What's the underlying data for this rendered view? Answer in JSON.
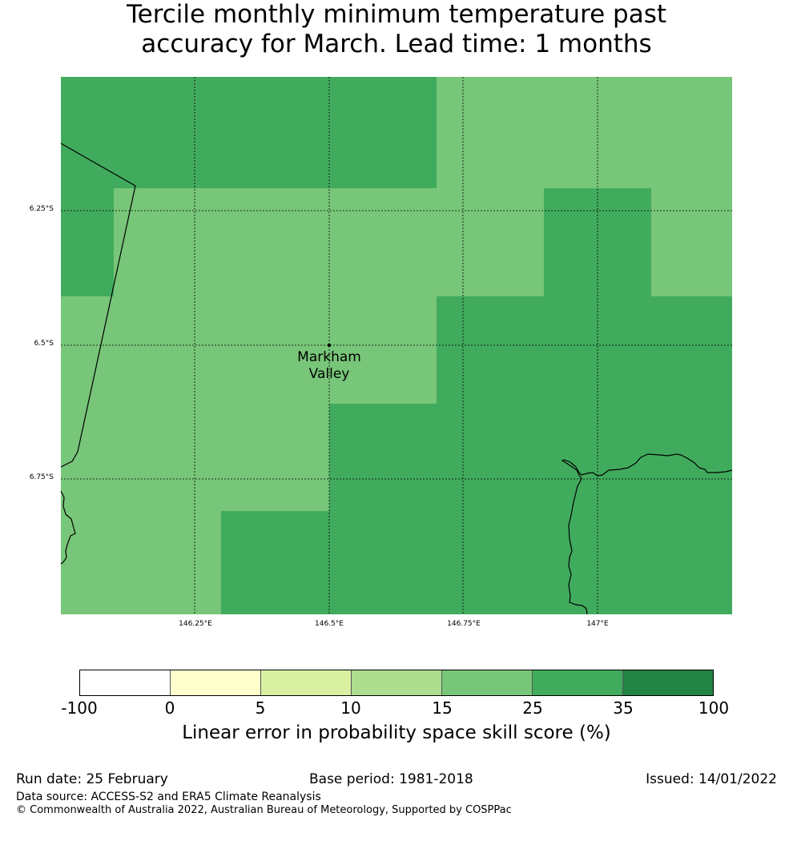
{
  "title": {
    "line1": "Tercile monthly minimum temperature past",
    "line2": "accuracy for March. Lead time: 1 months"
  },
  "map": {
    "latitude_labels": [
      "6.25°S",
      "6.5°S",
      "6.75°S"
    ],
    "longitude_labels": [
      "146.25°E",
      "146.5°E",
      "146.75°E",
      "147°E"
    ],
    "place": {
      "name_line1": "Markham",
      "name_line2": "Valley"
    },
    "category_colors": {
      "15-25": "#78c679",
      "25-35": "#41ab5d"
    }
  },
  "colorbar": {
    "ticks": [
      "-100",
      "0",
      "5",
      "10",
      "15",
      "25",
      "35",
      "100"
    ],
    "colors": [
      "#ffffff",
      "#ffffcc",
      "#d9f0a3",
      "#addd8e",
      "#78c679",
      "#41ab5d",
      "#238443"
    ],
    "label": "Linear error in probability space skill score (%)"
  },
  "footer": {
    "run_date": "Run date: 25 February",
    "base_period": "Base period: 1981-2018",
    "issued": "Issued: 14/01/2022",
    "data_source": "Data source: ACCESS-S2 and ERA5 Climate Reanalysis",
    "copyright": "© Commonwealth of Australia 2022, Australian Bureau of Meteorology, Supported by COSPPac"
  }
}
